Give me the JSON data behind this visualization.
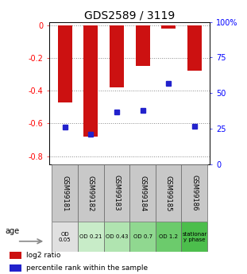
{
  "title": "GDS2589 / 3119",
  "samples": [
    "GSM99181",
    "GSM99182",
    "GSM99183",
    "GSM99184",
    "GSM99185",
    "GSM99186"
  ],
  "log2_ratios": [
    -0.47,
    -0.68,
    -0.38,
    -0.25,
    -0.02,
    -0.28
  ],
  "percentile_ranks": [
    26,
    21,
    37,
    38,
    57,
    27
  ],
  "age_labels": [
    "OD\n0.05",
    "OD 0.21",
    "OD 0.43",
    "OD 0.7",
    "OD 1.2",
    "stationar\ny phase"
  ],
  "age_colors": [
    "#e0e0e0",
    "#c8ecc8",
    "#b0e4b0",
    "#90d890",
    "#6ccb6c",
    "#4cbe4c"
  ],
  "ylim_left": [
    -0.85,
    0.02
  ],
  "ylim_right": [
    0,
    100
  ],
  "yticks_left": [
    0,
    -0.2,
    -0.4,
    -0.6,
    -0.8
  ],
  "yticks_right": [
    0,
    25,
    50,
    75,
    100
  ],
  "ytick_labels_right": [
    "0",
    "25",
    "50",
    "75",
    "100%"
  ],
  "bar_color": "#cc1111",
  "dot_color": "#2222cc",
  "bar_width": 0.55,
  "background_color": "#ffffff",
  "plot_bg_color": "#ffffff",
  "grid_color": "#888888",
  "sample_col_bg": "#c8c8c8"
}
